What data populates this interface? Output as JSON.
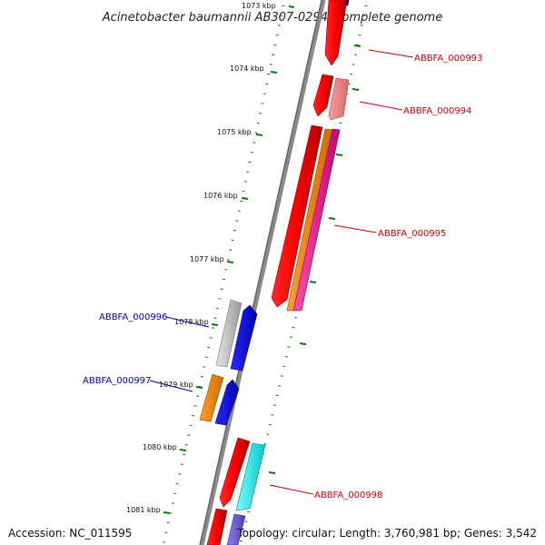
{
  "title": "Acinetobacter baumannii AB307-0294, complete genome",
  "footer": {
    "accession": "Accession: NC_011595",
    "topology": "Topology: circular; Length: 3,760,981 bp; Genes: 3,542"
  },
  "ticks": [
    "1073 kbp",
    "1074 kbp",
    "1075 kbp",
    "1076 kbp",
    "1077 kbp",
    "1078 kbp",
    "1079 kbp",
    "1080 kbp",
    "1081 kbp"
  ],
  "gene_labels": [
    {
      "text": "ABBFA_000993",
      "color": "#cc0000"
    },
    {
      "text": "ABBFA_000994",
      "color": "#cc0000"
    },
    {
      "text": "ABBFA_000995",
      "color": "#cc0000"
    },
    {
      "text": "ABBFA_000996",
      "color": "#0000aa"
    },
    {
      "text": "ABBFA_000997",
      "color": "#0000aa"
    },
    {
      "text": "ABBFA_000998",
      "color": "#cc0000"
    }
  ],
  "colors": {
    "red": "#ff0000",
    "salmon": "#f08080",
    "orange": "#ff8c00",
    "magenta": "#ff1493",
    "gray": "#b4b4b4",
    "blue": "#0000ff",
    "cyan": "#00ffff",
    "slate": "#6a5acd",
    "backbone": "#888888",
    "tick": "#0a7a0a"
  }
}
